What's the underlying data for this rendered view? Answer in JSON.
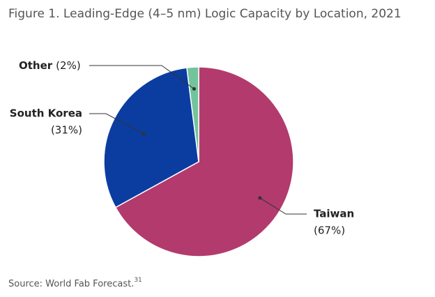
{
  "chart_data": {
    "type": "pie",
    "title": "Figure 1. Leading-Edge (4–5 nm) Logic Capacity by Location, 2021",
    "categories": [
      "Taiwan",
      "South Korea",
      "Other"
    ],
    "values": [
      67,
      31,
      2
    ],
    "value_labels": [
      "(67%)",
      "(31%)",
      "(2%)"
    ],
    "colors": [
      "#b33a6c",
      "#0b3da1",
      "#72c49c"
    ],
    "source": "Source: World Fab Forecast.",
    "source_note": "31"
  }
}
